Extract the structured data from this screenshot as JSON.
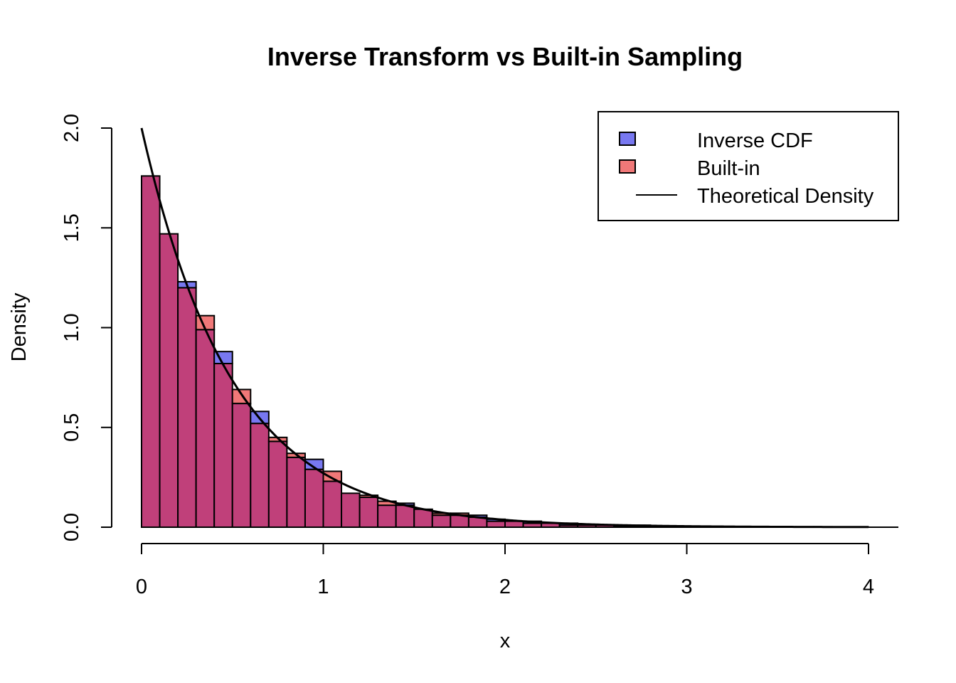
{
  "chart_data": {
    "type": "histogram",
    "title": "Inverse Transform vs Built-in Sampling",
    "xlabel": "x",
    "ylabel": "Density",
    "xlim": [
      0,
      4
    ],
    "ylim": [
      0,
      2.0
    ],
    "x_ticks": [
      "0",
      "1",
      "2",
      "3",
      "4"
    ],
    "y_ticks": [
      "0.0",
      "0.5",
      "1.0",
      "1.5",
      "2.0"
    ],
    "bin_width": 0.1,
    "bin_start": 0,
    "grid": false,
    "legend_position": "top-right",
    "series": [
      {
        "name": "Inverse CDF",
        "color": "#7878F0",
        "values": [
          1.76,
          1.47,
          1.23,
          0.99,
          0.88,
          0.62,
          0.58,
          0.43,
          0.35,
          0.34,
          0.23,
          0.17,
          0.15,
          0.11,
          0.12,
          0.09,
          0.06,
          0.06,
          0.06,
          0.04,
          0.03,
          0.03,
          0.02,
          0.02,
          0.01,
          0.01,
          0.01,
          0.01,
          0.005,
          0.005,
          0.005,
          0.005,
          0.003,
          0.003,
          0.003,
          0.002,
          0.002,
          0.002,
          0.001,
          0.001
        ]
      },
      {
        "name": "Built-in",
        "color": "#F07878",
        "values": [
          1.76,
          1.47,
          1.2,
          1.06,
          0.82,
          0.69,
          0.52,
          0.45,
          0.37,
          0.29,
          0.28,
          0.17,
          0.16,
          0.13,
          0.11,
          0.09,
          0.07,
          0.07,
          0.05,
          0.03,
          0.03,
          0.02,
          0.02,
          0.01,
          0.01,
          0.01,
          0.005,
          0.005,
          0.005,
          0.004,
          0.003,
          0.003,
          0.002,
          0.002,
          0.002,
          0.001,
          0.001,
          0.001,
          0.001,
          0.001
        ]
      }
    ],
    "overlap_color": "#C0407A",
    "density_line": {
      "name": "Theoretical Density",
      "color": "#000000",
      "rate": 2
    }
  }
}
